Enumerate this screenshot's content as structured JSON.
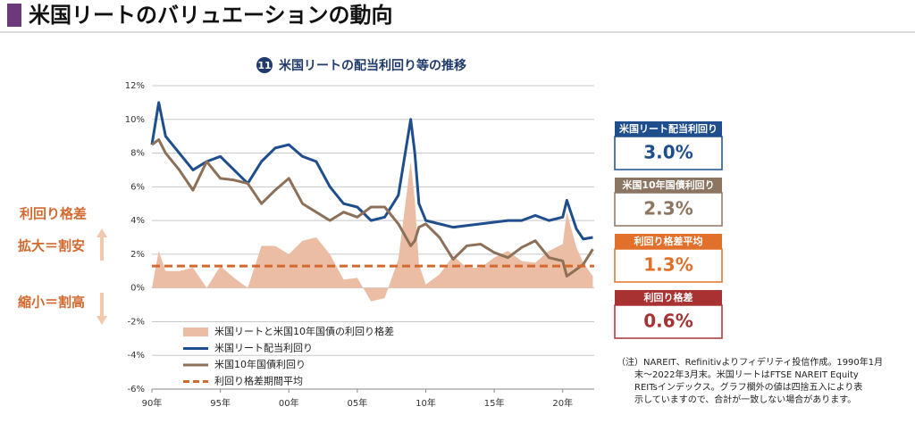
{
  "header": {
    "title": "米国リートのバリュエーションの動向"
  },
  "chart_data": {
    "type": "line",
    "badge": "11",
    "title": "米国リートの配当利回り等の推移",
    "x": [
      1990,
      1990.5,
      1991,
      1992,
      1993,
      1994,
      1995,
      1996,
      1997,
      1998,
      1999,
      2000,
      2001,
      2002,
      2003,
      2004,
      2005,
      2006,
      2007,
      2008,
      2008.9,
      2009.2,
      2009.5,
      2010,
      2011,
      2012,
      2013,
      2014,
      2015,
      2016,
      2017,
      2018,
      2019,
      2020,
      2020.3,
      2021,
      2021.5,
      2022.2
    ],
    "xlim": [
      1990,
      2022.3
    ],
    "xticks": [
      {
        "value": 1990,
        "label": "90年"
      },
      {
        "value": 1995,
        "label": "95年"
      },
      {
        "value": 2000,
        "label": "00年"
      },
      {
        "value": 2005,
        "label": "05年"
      },
      {
        "value": 2010,
        "label": "10年"
      },
      {
        "value": 2015,
        "label": "15年"
      },
      {
        "value": 2020,
        "label": "20年"
      }
    ],
    "ylim": [
      -6,
      12
    ],
    "yticks": [
      {
        "value": -6,
        "label": "-6%"
      },
      {
        "value": -4,
        "label": "-4%"
      },
      {
        "value": -2,
        "label": "-2%"
      },
      {
        "value": 0,
        "label": "0%"
      },
      {
        "value": 2,
        "label": "2%"
      },
      {
        "value": 4,
        "label": "4%"
      },
      {
        "value": 6,
        "label": "6%"
      },
      {
        "value": 8,
        "label": "8%"
      },
      {
        "value": 10,
        "label": "10%"
      },
      {
        "value": 12,
        "label": "12%"
      }
    ],
    "grid": true,
    "series": [
      {
        "name": "米国リートと米国10年国債の利回り格差",
        "kind": "area",
        "color": "#ebbda5",
        "values": [
          0,
          2.2,
          1.0,
          1.0,
          1.2,
          0,
          1.3,
          0.6,
          0,
          2.5,
          2.5,
          2.0,
          2.8,
          3.0,
          2.0,
          0.5,
          0.6,
          -0.8,
          -0.6,
          1.7,
          7.5,
          5.2,
          1.4,
          0.2,
          0.8,
          1.9,
          1.2,
          1.2,
          1.8,
          2.2,
          1.6,
          1.5,
          2.2,
          2.6,
          4.5,
          2.4,
          1.5,
          0.7
        ]
      },
      {
        "name": "米国リート配当利回り",
        "kind": "line",
        "color": "#1f4e8c",
        "values": [
          8.5,
          11.0,
          9.0,
          8.0,
          7.0,
          7.5,
          7.8,
          7.0,
          6.2,
          7.5,
          8.3,
          8.5,
          7.8,
          7.5,
          6.0,
          5.0,
          4.8,
          4.0,
          4.2,
          5.5,
          10.0,
          8.0,
          5.0,
          4.0,
          3.8,
          3.6,
          3.7,
          3.8,
          3.9,
          4.0,
          4.0,
          4.3,
          4.0,
          4.2,
          5.2,
          3.5,
          2.9,
          3.0
        ]
      },
      {
        "name": "米国10年国債利回り",
        "kind": "line",
        "color": "#8c7059",
        "values": [
          8.5,
          8.8,
          8.0,
          7.0,
          5.8,
          7.5,
          6.5,
          6.4,
          6.2,
          5.0,
          5.8,
          6.5,
          5.0,
          4.5,
          4.0,
          4.5,
          4.2,
          4.8,
          4.8,
          3.8,
          2.5,
          2.8,
          3.6,
          3.8,
          3.0,
          1.7,
          2.5,
          2.6,
          2.1,
          1.8,
          2.4,
          2.8,
          1.8,
          1.6,
          0.7,
          1.1,
          1.4,
          2.3
        ]
      },
      {
        "name": "利回り格差期間平均",
        "kind": "hline",
        "color": "#d2692f",
        "value": 1.3
      }
    ],
    "side_panels": [
      {
        "title": "米国リート配当利回り",
        "value": 3.0,
        "label": "3.0%",
        "color": "#1f4e8c"
      },
      {
        "title": "米国10年国債利回り",
        "value": 2.3,
        "label": "2.3%",
        "color": "#8c7561"
      },
      {
        "title": "利回り格差平均",
        "value": 1.3,
        "label": "1.3%",
        "color": "#e0702a"
      },
      {
        "title": "利回り格差",
        "value": 0.6,
        "label": "0.6%",
        "color": "#a83232"
      }
    ],
    "annotations": {
      "heading": "利回り格差",
      "up": "拡大＝割安",
      "down": "縮小＝割高"
    },
    "note": [
      "（注）NAREIT、Refinitivよりフィデリティ投信作成。1990年1月",
      "末～2022年3月末。米国リートはFTSE NAREIT Equity",
      "REITsインデックス。グラフ欄外の値は四捨五入により表",
      "示していますので、合計が一致しない場合があります。"
    ]
  }
}
